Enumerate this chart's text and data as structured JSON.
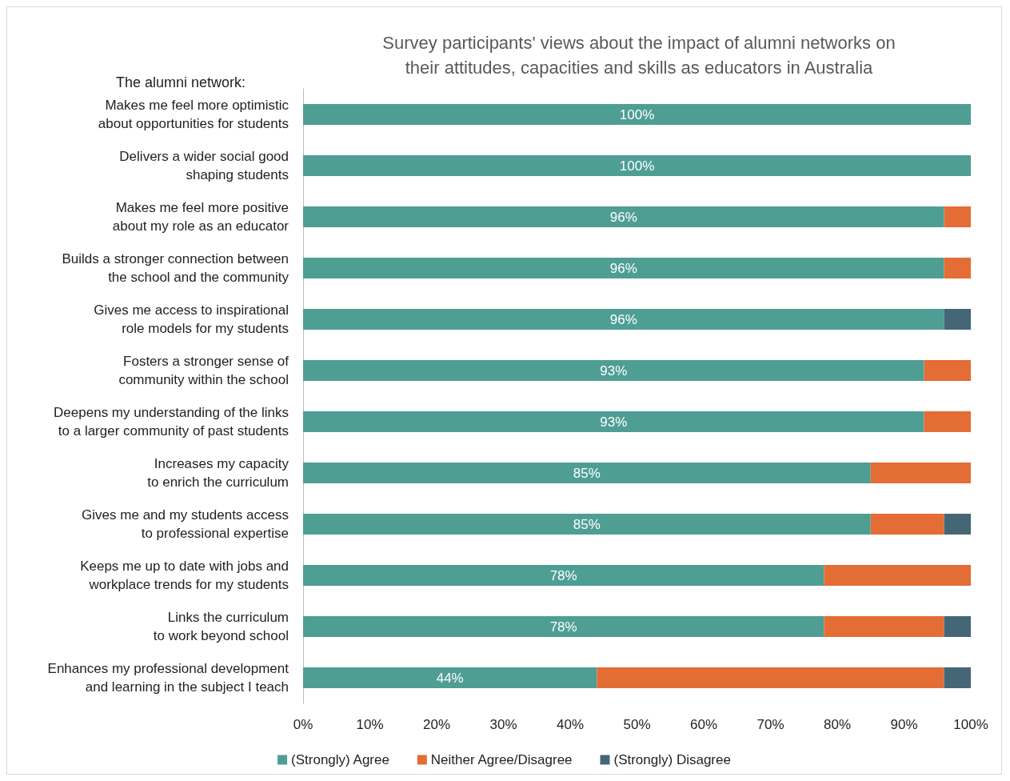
{
  "chart_data": {
    "type": "bar",
    "orientation": "horizontal",
    "stacked": true,
    "title": "Survey participants' views about the impact of alumni networks on\ntheir attitudes, capacities and skills as educators in Australia",
    "annotations": [
      "The alumni network:"
    ],
    "categories": [
      "Makes me feel more optimistic\nabout opportunities for students",
      "Delivers a wider social good\nshaping students",
      "Makes me feel more positive\nabout my role as an educator",
      "Builds a stronger connection between\nthe school and the community",
      "Gives me access to inspirational\nrole models for my students",
      "Fosters a stronger sense of\ncommunity within the school",
      "Deepens my understanding of the links\nto a larger community of past students",
      "Increases my capacity\nto enrich the curriculum",
      "Gives me and my students access\nto professional expertise",
      "Keeps me up to date with jobs and\nworkplace trends for my students",
      "Links the curriculum\nto work beyond school",
      "Enhances my professional development\nand learning in the subject I teach"
    ],
    "series": [
      {
        "name": "(Strongly) Agree",
        "color": "#4e9e94",
        "values": [
          100,
          100,
          96,
          96,
          96,
          93,
          93,
          85,
          85,
          78,
          78,
          44
        ],
        "value_labels": [
          "100%",
          "100%",
          "96%",
          "96%",
          "96%",
          "93%",
          "93%",
          "85%",
          "85%",
          "78%",
          "78%",
          "44%"
        ]
      },
      {
        "name": "Neither Agree/Disagree",
        "color": "#e46c35",
        "values": [
          0,
          0,
          4,
          4,
          0,
          7,
          7,
          15,
          11,
          22,
          18,
          52
        ]
      },
      {
        "name": "(Strongly) Disagree",
        "color": "#456677",
        "values": [
          0,
          0,
          0,
          0,
          4,
          0,
          0,
          0,
          4,
          0,
          4,
          4
        ]
      }
    ],
    "xlim": [
      0,
      100
    ],
    "xticks": [
      {
        "value": 0,
        "label": "0%"
      },
      {
        "value": 10,
        "label": "10%"
      },
      {
        "value": 20,
        "label": "20%"
      },
      {
        "value": 30,
        "label": "30%"
      },
      {
        "value": 40,
        "label": "40%"
      },
      {
        "value": 50,
        "label": "50%"
      },
      {
        "value": 60,
        "label": "60%"
      },
      {
        "value": 70,
        "label": "70%"
      },
      {
        "value": 80,
        "label": "80%"
      },
      {
        "value": 90,
        "label": "90%"
      },
      {
        "value": 100,
        "label": "100%"
      }
    ],
    "grid": false,
    "legend": "bottom"
  }
}
